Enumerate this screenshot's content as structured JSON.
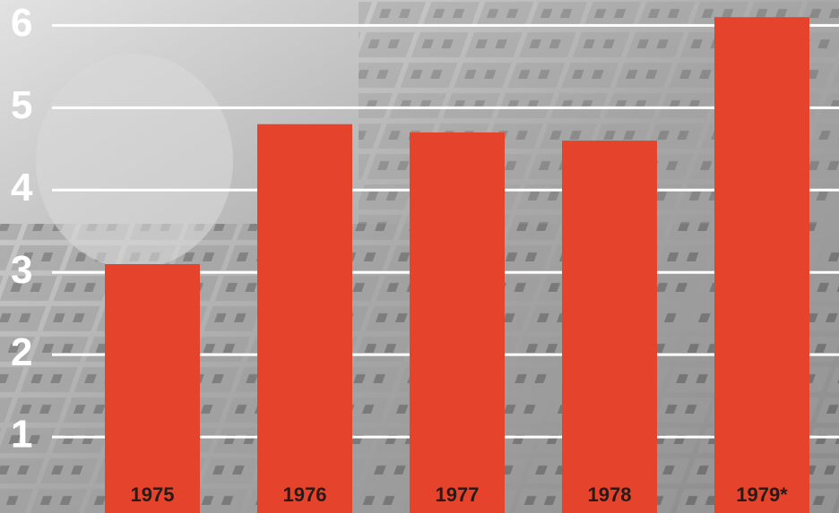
{
  "chart_data": {
    "type": "bar",
    "categories": [
      "1975",
      "1976",
      "1977",
      "1978",
      "1979*"
    ],
    "values": [
      3.1,
      4.8,
      4.7,
      4.6,
      6.1
    ],
    "color": "#e5432b",
    "ylim": [
      0,
      6.2
    ],
    "yticks": [
      1,
      2,
      3,
      4,
      5,
      6
    ],
    "grid": true
  }
}
